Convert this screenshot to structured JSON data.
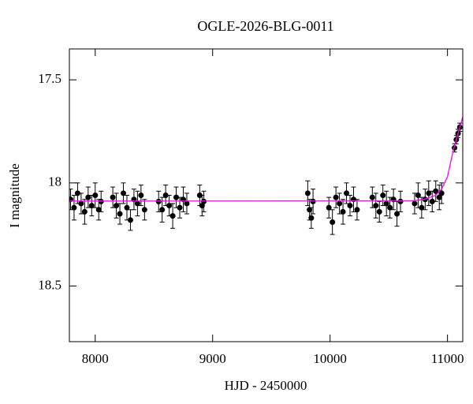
{
  "chart_data": {
    "type": "scatter",
    "title": "OGLE-2026-BLG-0011",
    "xlabel": "HJD - 2450000",
    "ylabel": "I magnitude",
    "xlim": [
      7780,
      11130
    ],
    "ylim": [
      18.77,
      17.35
    ],
    "xticks": [
      8000,
      9000,
      10000,
      11000
    ],
    "yticks": [
      17.5,
      18,
      18.5
    ],
    "series": [
      {
        "type": "errorbar",
        "color": "#000000",
        "x": [
          7790,
          7820,
          7850,
          7880,
          7910,
          7940,
          7970,
          8000,
          8030,
          8050,
          8150,
          8180,
          8210,
          8240,
          8270,
          8300,
          8330,
          8360,
          8390,
          8420,
          8540,
          8570,
          8600,
          8630,
          8660,
          8690,
          8720,
          8750,
          8780,
          8890,
          8910,
          8925,
          9810,
          9825,
          9840,
          9855,
          9990,
          10020,
          10050,
          10080,
          10110,
          10140,
          10170,
          10200,
          10230,
          10360,
          10390,
          10420,
          10450,
          10480,
          10510,
          10540,
          10570,
          10600,
          10720,
          10750,
          10780,
          10810,
          10840,
          10870,
          10900,
          10930,
          10950,
          11060,
          11075,
          11090,
          11105
        ],
        "values": [
          18.08,
          18.12,
          18.05,
          18.1,
          18.14,
          18.07,
          18.11,
          18.06,
          18.13,
          18.09,
          18.07,
          18.11,
          18.15,
          18.05,
          18.12,
          18.18,
          18.08,
          18.1,
          18.06,
          18.13,
          18.09,
          18.13,
          18.06,
          18.11,
          18.16,
          18.07,
          18.12,
          18.08,
          18.1,
          18.06,
          18.11,
          18.09,
          18.05,
          18.13,
          18.17,
          18.09,
          18.12,
          18.19,
          18.07,
          18.1,
          18.14,
          18.05,
          18.11,
          18.08,
          18.13,
          18.07,
          18.11,
          18.14,
          18.06,
          18.1,
          18.12,
          18.08,
          18.15,
          18.09,
          18.1,
          18.06,
          18.12,
          18.08,
          18.05,
          18.09,
          18.04,
          18.07,
          18.05,
          17.83,
          17.79,
          17.76,
          17.73
        ],
        "errors": [
          0.05,
          0.06,
          0.05,
          0.05,
          0.06,
          0.05,
          0.05,
          0.06,
          0.05,
          0.05,
          0.05,
          0.06,
          0.05,
          0.05,
          0.06,
          0.05,
          0.05,
          0.06,
          0.05,
          0.05,
          0.05,
          0.06,
          0.05,
          0.05,
          0.06,
          0.05,
          0.05,
          0.06,
          0.05,
          0.05,
          0.05,
          0.05,
          0.06,
          0.05,
          0.05,
          0.06,
          0.05,
          0.06,
          0.05,
          0.05,
          0.06,
          0.05,
          0.05,
          0.06,
          0.05,
          0.05,
          0.06,
          0.05,
          0.05,
          0.06,
          0.05,
          0.05,
          0.06,
          0.05,
          0.05,
          0.06,
          0.05,
          0.05,
          0.06,
          0.05,
          0.05,
          0.06,
          0.05,
          0.02,
          0.02,
          0.02,
          0.02
        ]
      },
      {
        "type": "line",
        "color": "#ff00ff",
        "x": [
          7780,
          10700,
          10800,
          10900,
          10950,
          11000,
          11050,
          11090,
          11130
        ],
        "values": [
          18.088,
          18.087,
          18.08,
          18.06,
          18.03,
          17.97,
          17.84,
          17.76,
          17.68
        ]
      }
    ]
  }
}
